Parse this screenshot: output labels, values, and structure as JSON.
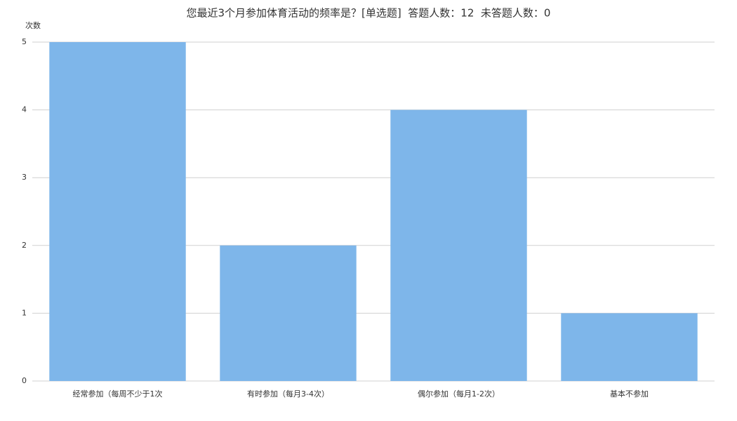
{
  "chart_data": {
    "type": "bar",
    "title": "您最近3个月参加体育活动的频率是？[单选题]  答题人数：12  未答题人数：0",
    "y_label": "次数",
    "categories": [
      "经常参加（每周不少于1次",
      "有时参加（每月3-4次）",
      "偶尔参加（每月1-2次）",
      "基本不参加"
    ],
    "values": [
      5,
      2,
      4,
      1
    ],
    "color": "#7eb6ea",
    "ylim": [
      0,
      5
    ],
    "yticks": [
      0,
      1,
      2,
      3,
      4,
      5
    ],
    "grid": true
  }
}
